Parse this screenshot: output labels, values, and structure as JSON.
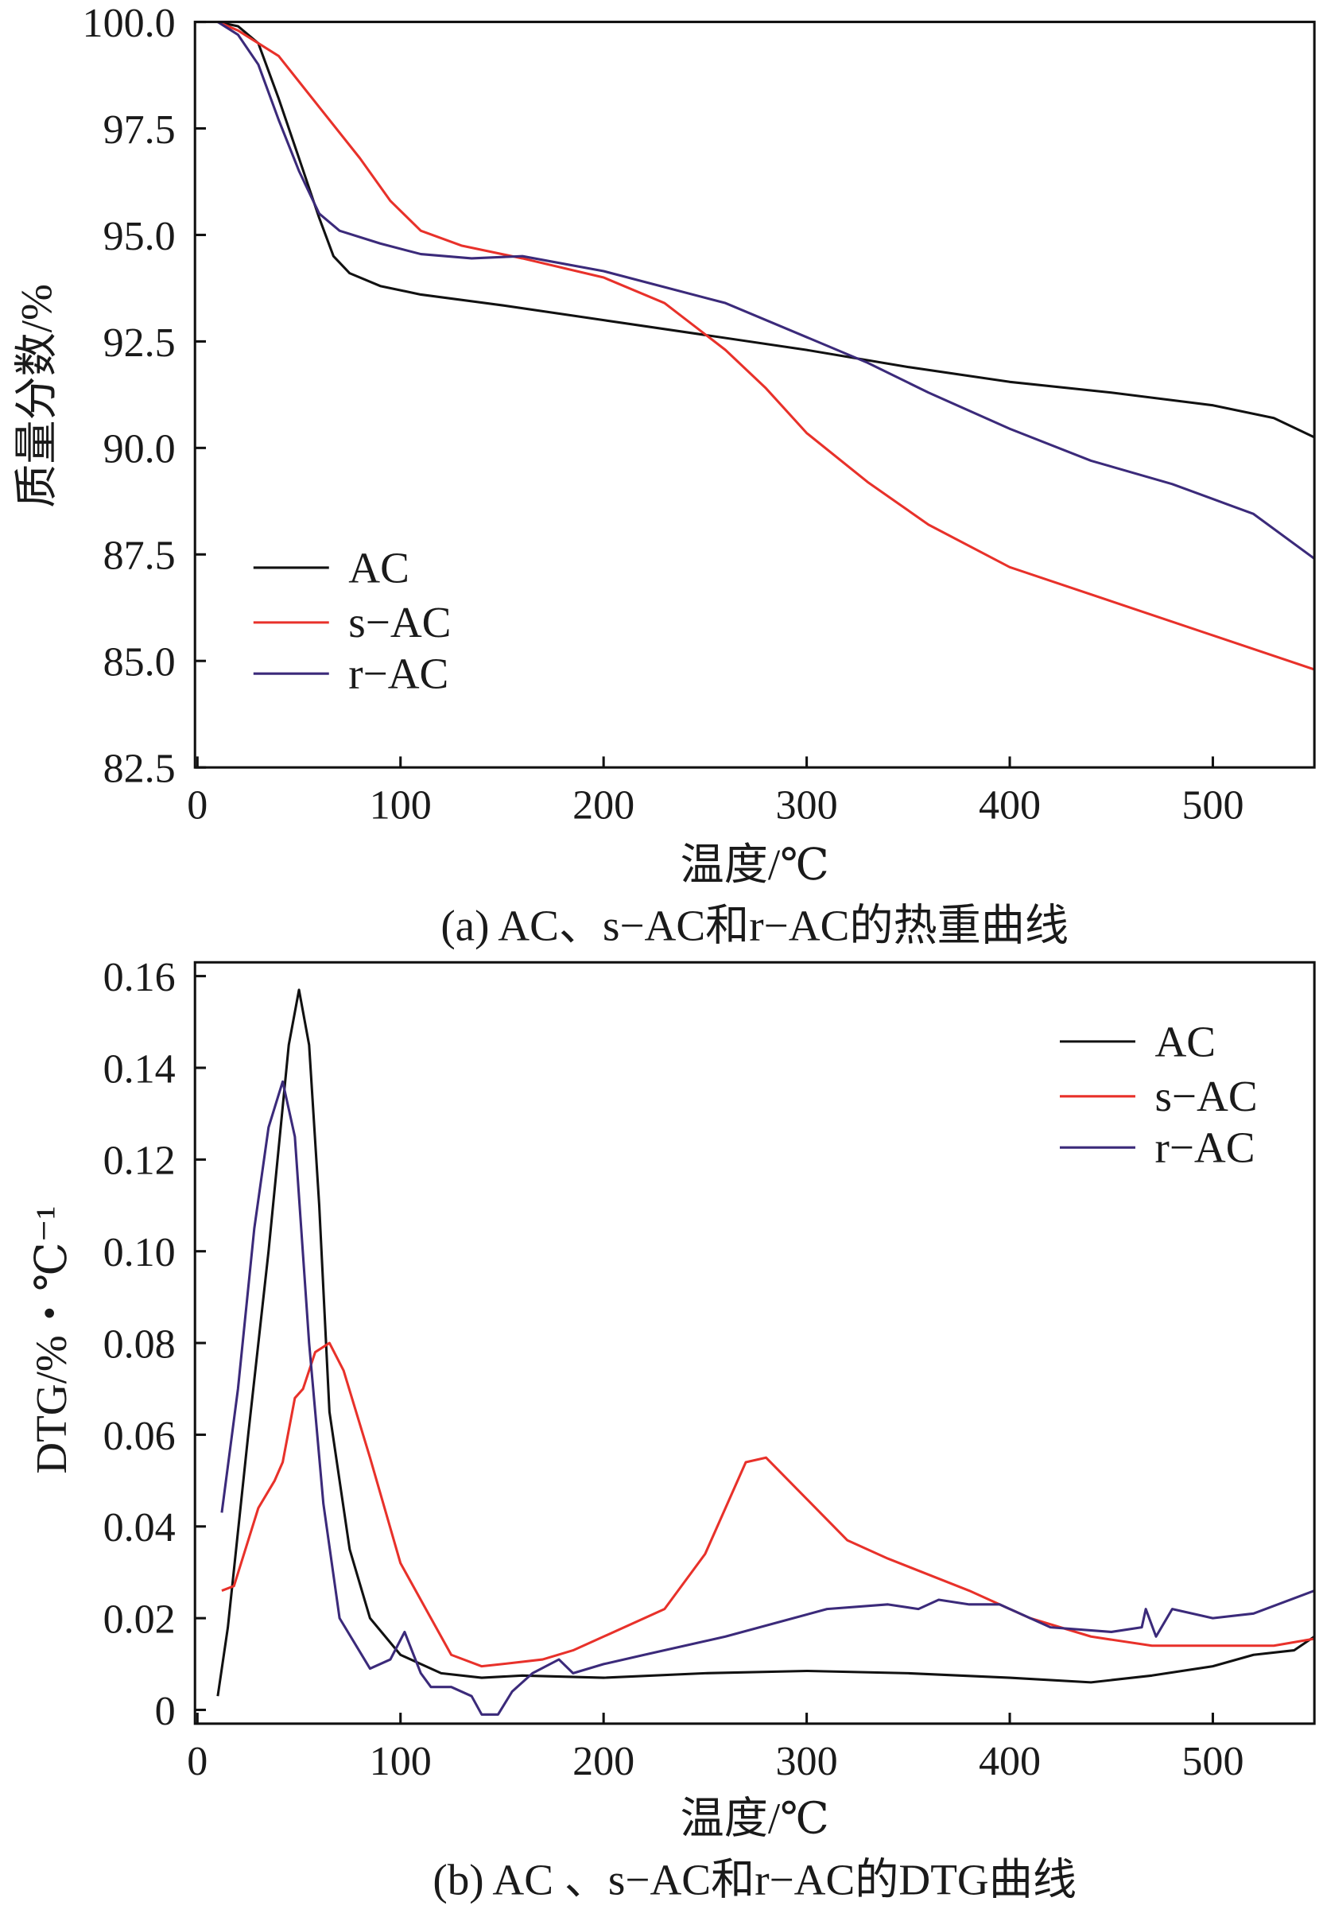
{
  "chart_data": [
    {
      "type": "line",
      "title": "",
      "caption": "(a) AC、s−AC和r−AC的热重曲线",
      "xlabel": "温度/℃",
      "ylabel": "质量分数/%",
      "xlim": [
        0,
        550
      ],
      "ylim": [
        82.5,
        100.0
      ],
      "xticks": [
        0,
        100,
        200,
        300,
        400,
        500
      ],
      "xtick_labels": [
        "0",
        "100",
        "200",
        "300",
        "400",
        "500"
      ],
      "yticks": [
        82.5,
        85.0,
        87.5,
        90.0,
        92.5,
        95.0,
        97.5,
        100.0
      ],
      "ytick_labels": [
        "82.5",
        "85.0",
        "87.5",
        "90.0",
        "92.5",
        "95.0",
        "97.5",
        "100.0"
      ],
      "grid": false,
      "legend": "bottom-left",
      "series": [
        {
          "name": "AC",
          "color": "#111111",
          "points": [
            [
              10,
              100
            ],
            [
              20,
              99.9
            ],
            [
              30,
              99.5
            ],
            [
              40,
              98.2
            ],
            [
              50,
              96.8
            ],
            [
              60,
              95.4
            ],
            [
              67,
              94.5
            ],
            [
              75,
              94.1
            ],
            [
              90,
              93.8
            ],
            [
              110,
              93.6
            ],
            [
              150,
              93.35
            ],
            [
              200,
              93.0
            ],
            [
              250,
              92.65
            ],
            [
              300,
              92.3
            ],
            [
              350,
              91.9
            ],
            [
              400,
              91.55
            ],
            [
              450,
              91.3
            ],
            [
              500,
              91.0
            ],
            [
              530,
              90.7
            ],
            [
              550,
              90.25
            ]
          ]
        },
        {
          "name": "s−AC",
          "color": "#e8312a",
          "points": [
            [
              10,
              100
            ],
            [
              20,
              99.8
            ],
            [
              40,
              99.2
            ],
            [
              60,
              98.0
            ],
            [
              80,
              96.8
            ],
            [
              95,
              95.8
            ],
            [
              110,
              95.1
            ],
            [
              130,
              94.75
            ],
            [
              160,
              94.45
            ],
            [
              200,
              94.0
            ],
            [
              230,
              93.4
            ],
            [
              260,
              92.3
            ],
            [
              280,
              91.4
            ],
            [
              300,
              90.35
            ],
            [
              330,
              89.2
            ],
            [
              360,
              88.2
            ],
            [
              400,
              87.2
            ],
            [
              450,
              86.4
            ],
            [
              500,
              85.6
            ],
            [
              550,
              84.8
            ]
          ]
        },
        {
          "name": "r−AC",
          "color": "#3b2a7a",
          "points": [
            [
              10,
              100
            ],
            [
              20,
              99.7
            ],
            [
              30,
              99.0
            ],
            [
              40,
              97.7
            ],
            [
              50,
              96.5
            ],
            [
              60,
              95.5
            ],
            [
              70,
              95.1
            ],
            [
              90,
              94.8
            ],
            [
              110,
              94.55
            ],
            [
              135,
              94.45
            ],
            [
              160,
              94.5
            ],
            [
              200,
              94.15
            ],
            [
              260,
              93.4
            ],
            [
              300,
              92.6
            ],
            [
              330,
              92.0
            ],
            [
              360,
              91.3
            ],
            [
              400,
              90.45
            ],
            [
              440,
              89.7
            ],
            [
              480,
              89.15
            ],
            [
              520,
              88.45
            ],
            [
              550,
              87.4
            ]
          ]
        }
      ]
    },
    {
      "type": "line",
      "title": "",
      "caption": "(b) AC 、s−AC和r−AC的DTG曲线",
      "xlabel": "温度/℃",
      "ylabel": "DTG/%・℃⁻¹",
      "xlim": [
        0,
        550
      ],
      "ylim": [
        -0.003,
        0.163
      ],
      "xticks": [
        0,
        100,
        200,
        300,
        400,
        500
      ],
      "xtick_labels": [
        "0",
        "100",
        "200",
        "300",
        "400",
        "500"
      ],
      "yticks": [
        0,
        0.02,
        0.04,
        0.06,
        0.08,
        0.1,
        0.12,
        0.14,
        0.16
      ],
      "ytick_labels": [
        "0",
        "0.02",
        "0.04",
        "0.06",
        "0.08",
        "0.10",
        "0.12",
        "0.14",
        "0.16"
      ],
      "grid": false,
      "legend": "top-right",
      "series": [
        {
          "name": "AC",
          "color": "#111111",
          "points": [
            [
              10,
              0.003
            ],
            [
              15,
              0.018
            ],
            [
              25,
              0.06
            ],
            [
              35,
              0.1
            ],
            [
              45,
              0.145
            ],
            [
              50,
              0.157
            ],
            [
              55,
              0.145
            ],
            [
              60,
              0.11
            ],
            [
              65,
              0.065
            ],
            [
              75,
              0.035
            ],
            [
              85,
              0.02
            ],
            [
              100,
              0.012
            ],
            [
              120,
              0.008
            ],
            [
              140,
              0.007
            ],
            [
              160,
              0.0075
            ],
            [
              200,
              0.007
            ],
            [
              250,
              0.008
            ],
            [
              300,
              0.0085
            ],
            [
              350,
              0.008
            ],
            [
              400,
              0.007
            ],
            [
              440,
              0.006
            ],
            [
              470,
              0.0075
            ],
            [
              500,
              0.0095
            ],
            [
              520,
              0.012
            ],
            [
              540,
              0.013
            ],
            [
              550,
              0.016
            ]
          ]
        },
        {
          "name": "s−AC",
          "color": "#e8312a",
          "points": [
            [
              12,
              0.026
            ],
            [
              18,
              0.027
            ],
            [
              30,
              0.044
            ],
            [
              38,
              0.05
            ],
            [
              42,
              0.054
            ],
            [
              48,
              0.068
            ],
            [
              52,
              0.07
            ],
            [
              58,
              0.078
            ],
            [
              65,
              0.08
            ],
            [
              72,
              0.074
            ],
            [
              85,
              0.055
            ],
            [
              100,
              0.032
            ],
            [
              115,
              0.02
            ],
            [
              125,
              0.012
            ],
            [
              140,
              0.0095
            ],
            [
              150,
              0.01
            ],
            [
              170,
              0.011
            ],
            [
              185,
              0.013
            ],
            [
              200,
              0.016
            ],
            [
              230,
              0.022
            ],
            [
              250,
              0.034
            ],
            [
              270,
              0.054
            ],
            [
              280,
              0.055
            ],
            [
              300,
              0.046
            ],
            [
              320,
              0.037
            ],
            [
              340,
              0.033
            ],
            [
              380,
              0.026
            ],
            [
              410,
              0.02
            ],
            [
              440,
              0.016
            ],
            [
              470,
              0.014
            ],
            [
              500,
              0.014
            ],
            [
              530,
              0.014
            ],
            [
              550,
              0.0155
            ]
          ]
        },
        {
          "name": "r−AC",
          "color": "#3b2a7a",
          "points": [
            [
              12,
              0.043
            ],
            [
              20,
              0.07
            ],
            [
              28,
              0.105
            ],
            [
              35,
              0.127
            ],
            [
              42,
              0.137
            ],
            [
              48,
              0.125
            ],
            [
              55,
              0.08
            ],
            [
              62,
              0.045
            ],
            [
              70,
              0.02
            ],
            [
              85,
              0.009
            ],
            [
              95,
              0.011
            ],
            [
              102,
              0.017
            ],
            [
              110,
              0.008
            ],
            [
              115,
              0.005
            ],
            [
              125,
              0.005
            ],
            [
              135,
              0.003
            ],
            [
              140,
              -0.001
            ],
            [
              148,
              -0.001
            ],
            [
              155,
              0.004
            ],
            [
              165,
              0.008
            ],
            [
              178,
              0.011
            ],
            [
              185,
              0.008
            ],
            [
              200,
              0.01
            ],
            [
              220,
              0.012
            ],
            [
              260,
              0.016
            ],
            [
              310,
              0.022
            ],
            [
              340,
              0.023
            ],
            [
              355,
              0.022
            ],
            [
              365,
              0.024
            ],
            [
              380,
              0.023
            ],
            [
              395,
              0.023
            ],
            [
              420,
              0.018
            ],
            [
              450,
              0.017
            ],
            [
              465,
              0.018
            ],
            [
              467,
              0.022
            ],
            [
              472,
              0.016
            ],
            [
              480,
              0.022
            ],
            [
              500,
              0.02
            ],
            [
              520,
              0.021
            ],
            [
              550,
              0.026
            ]
          ]
        }
      ]
    }
  ]
}
